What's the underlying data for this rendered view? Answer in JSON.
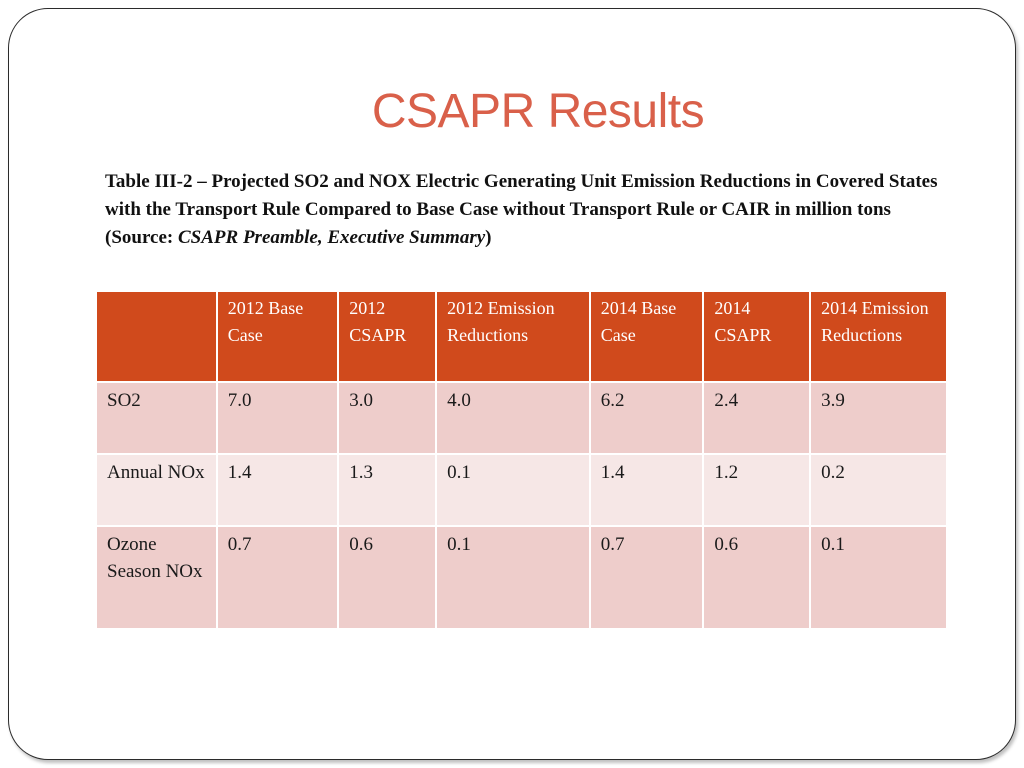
{
  "slide": {
    "title": "CSAPR Results",
    "caption": {
      "text": "Table III-2 – Projected SO2 and NOX Electric Generating Unit Emission Reductions in Covered States with the Transport Rule Compared to Base Case without Transport Rule or CAIR in million tons  (Source: ",
      "source_title": "CSAPR Preamble, Executive Summary",
      "close": ")"
    }
  },
  "table": {
    "headers": [
      "",
      "2012 Base Case",
      "2012 CSAPR",
      "2012 Emission Reductions",
      "2014 Base Case",
      "2014 CSAPR",
      "2014 Emission Reductions"
    ],
    "rows": [
      {
        "label": "SO2",
        "values": [
          "7.0",
          "3.0",
          "4.0",
          "6.2",
          "2.4",
          "3.9"
        ]
      },
      {
        "label": "Annual NOx",
        "values": [
          "1.4",
          "1.3",
          "0.1",
          "1.4",
          "1.2",
          "0.2"
        ]
      },
      {
        "label": "Ozone Season NOx",
        "values": [
          "0.7",
          "0.6",
          "0.1",
          "0.7",
          "0.6",
          "0.1"
        ]
      }
    ]
  },
  "colors": {
    "title": "#d9604a",
    "header_bg": "#d04a1c",
    "row_dark": "#eecdcb",
    "row_light": "#f6e7e6"
  }
}
